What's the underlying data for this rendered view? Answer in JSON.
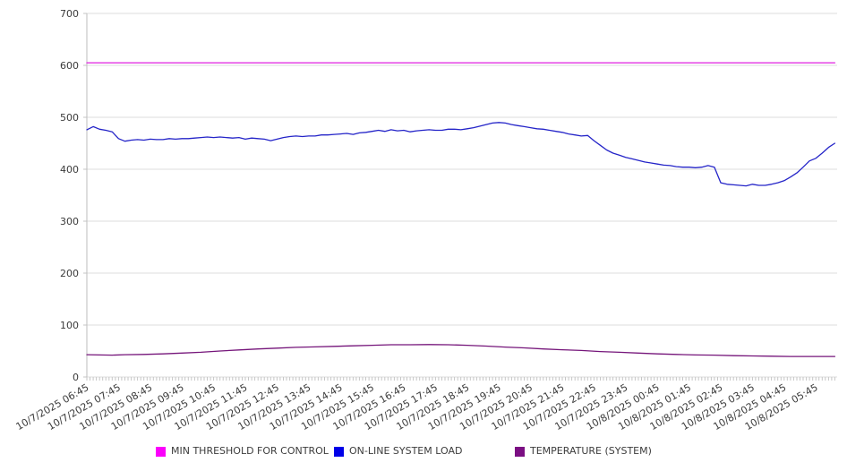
{
  "chart_data": {
    "type": "line",
    "title": "",
    "xlabel": "",
    "ylabel": "",
    "grid": "horizontal",
    "legend_position": "bottom",
    "y_axis": {
      "min": 0,
      "max": 700,
      "step": 100,
      "tick_labels": [
        "0",
        "100",
        "200",
        "300",
        "400",
        "500",
        "600",
        "700"
      ]
    },
    "x_axis": {
      "tick_labels": [
        "10/7/2025 06:45",
        "10/7/2025 07:45",
        "10/7/2025 08:45",
        "10/7/2025 09:45",
        "10/7/2025 10:45",
        "10/7/2025 11:45",
        "10/7/2025 12:45",
        "10/7/2025 13:45",
        "10/7/2025 14:45",
        "10/7/2025 15:45",
        "10/7/2025 16:45",
        "10/7/2025 17:45",
        "10/7/2025 18:45",
        "10/7/2025 19:45",
        "10/7/2025 20:45",
        "10/7/2025 21:45",
        "10/7/2025 22:45",
        "10/7/2025 23:45",
        "10/8/2025 00:45",
        "10/8/2025 01:45",
        "10/8/2025 02:45",
        "10/8/2025 03:45",
        "10/8/2025 04:45",
        "10/8/2025 05:45"
      ],
      "t_first_tick": 6.75,
      "t_tick_step": 1.0,
      "t_min": 6.75,
      "t_max": 30.35,
      "minor_tick_step": 0.1,
      "label_rotation_deg": -30
    },
    "series": [
      {
        "name": "MIN THRESHOLD FOR CONTROL",
        "color": "#df1fdf",
        "legend_color": "#fb00fb",
        "points": [
          [
            6.75,
            605
          ],
          [
            30.35,
            605
          ]
        ]
      },
      {
        "name": "ON-LINE SYSTEM LOAD",
        "color": "#2424c8",
        "legend_color": "#0000e8",
        "points": [
          [
            6.75,
            476
          ],
          [
            6.95,
            482
          ],
          [
            7.15,
            477
          ],
          [
            7.35,
            475
          ],
          [
            7.55,
            472
          ],
          [
            7.75,
            459
          ],
          [
            7.95,
            454
          ],
          [
            8.15,
            456
          ],
          [
            8.35,
            457
          ],
          [
            8.55,
            456
          ],
          [
            8.75,
            458
          ],
          [
            8.95,
            457
          ],
          [
            9.15,
            457
          ],
          [
            9.35,
            459
          ],
          [
            9.55,
            458
          ],
          [
            9.75,
            459
          ],
          [
            9.95,
            459
          ],
          [
            10.15,
            460
          ],
          [
            10.35,
            461
          ],
          [
            10.55,
            462
          ],
          [
            10.75,
            461
          ],
          [
            10.95,
            462
          ],
          [
            11.15,
            461
          ],
          [
            11.35,
            460
          ],
          [
            11.55,
            461
          ],
          [
            11.75,
            458
          ],
          [
            11.95,
            460
          ],
          [
            12.15,
            459
          ],
          [
            12.35,
            458
          ],
          [
            12.55,
            455
          ],
          [
            12.75,
            458
          ],
          [
            12.95,
            461
          ],
          [
            13.15,
            463
          ],
          [
            13.35,
            464
          ],
          [
            13.55,
            463
          ],
          [
            13.75,
            464
          ],
          [
            13.95,
            464
          ],
          [
            14.15,
            466
          ],
          [
            14.35,
            466
          ],
          [
            14.55,
            467
          ],
          [
            14.75,
            468
          ],
          [
            14.95,
            469
          ],
          [
            15.15,
            467
          ],
          [
            15.35,
            470
          ],
          [
            15.55,
            471
          ],
          [
            15.75,
            473
          ],
          [
            15.95,
            475
          ],
          [
            16.15,
            473
          ],
          [
            16.35,
            476
          ],
          [
            16.55,
            474
          ],
          [
            16.75,
            475
          ],
          [
            16.95,
            472
          ],
          [
            17.15,
            474
          ],
          [
            17.35,
            475
          ],
          [
            17.55,
            476
          ],
          [
            17.75,
            475
          ],
          [
            17.95,
            475
          ],
          [
            18.15,
            477
          ],
          [
            18.35,
            477
          ],
          [
            18.55,
            476
          ],
          [
            18.75,
            478
          ],
          [
            18.95,
            480
          ],
          [
            19.15,
            483
          ],
          [
            19.35,
            486
          ],
          [
            19.55,
            489
          ],
          [
            19.75,
            490
          ],
          [
            19.95,
            489
          ],
          [
            20.15,
            486
          ],
          [
            20.35,
            484
          ],
          [
            20.55,
            482
          ],
          [
            20.75,
            480
          ],
          [
            20.95,
            478
          ],
          [
            21.15,
            477
          ],
          [
            21.35,
            475
          ],
          [
            21.55,
            473
          ],
          [
            21.75,
            471
          ],
          [
            21.95,
            468
          ],
          [
            22.15,
            466
          ],
          [
            22.35,
            464
          ],
          [
            22.55,
            465
          ],
          [
            22.75,
            455
          ],
          [
            22.95,
            446
          ],
          [
            23.15,
            437
          ],
          [
            23.35,
            431
          ],
          [
            23.55,
            427
          ],
          [
            23.75,
            423
          ],
          [
            23.95,
            420
          ],
          [
            24.15,
            417
          ],
          [
            24.35,
            414
          ],
          [
            24.55,
            412
          ],
          [
            24.75,
            410
          ],
          [
            24.95,
            408
          ],
          [
            25.15,
            407
          ],
          [
            25.35,
            405
          ],
          [
            25.55,
            404
          ],
          [
            25.75,
            404
          ],
          [
            25.95,
            403
          ],
          [
            26.15,
            404
          ],
          [
            26.35,
            407
          ],
          [
            26.55,
            404
          ],
          [
            26.75,
            374
          ],
          [
            26.95,
            371
          ],
          [
            27.15,
            370
          ],
          [
            27.35,
            369
          ],
          [
            27.55,
            368
          ],
          [
            27.75,
            371
          ],
          [
            27.95,
            369
          ],
          [
            28.15,
            369
          ],
          [
            28.35,
            371
          ],
          [
            28.55,
            374
          ],
          [
            28.75,
            378
          ],
          [
            28.95,
            385
          ],
          [
            29.15,
            393
          ],
          [
            29.35,
            404
          ],
          [
            29.55,
            416
          ],
          [
            29.75,
            421
          ],
          [
            29.95,
            431
          ],
          [
            30.15,
            442
          ],
          [
            30.35,
            450
          ]
        ]
      },
      {
        "name": "TEMPERATURE (SYSTEM)",
        "color": "#75157a",
        "legend_color": "#7b0f83",
        "points": [
          [
            6.75,
            43
          ],
          [
            7.15,
            42.5
          ],
          [
            7.55,
            42
          ],
          [
            7.95,
            43
          ],
          [
            8.55,
            43.5
          ],
          [
            9.15,
            44.5
          ],
          [
            9.75,
            46
          ],
          [
            10.35,
            47.5
          ],
          [
            10.95,
            50
          ],
          [
            11.55,
            52
          ],
          [
            12.15,
            54
          ],
          [
            12.75,
            55.5
          ],
          [
            13.35,
            57
          ],
          [
            13.95,
            58
          ],
          [
            14.55,
            59
          ],
          [
            15.15,
            60
          ],
          [
            15.75,
            61
          ],
          [
            16.35,
            62
          ],
          [
            16.95,
            62
          ],
          [
            17.55,
            62.5
          ],
          [
            18.15,
            62
          ],
          [
            18.75,
            61
          ],
          [
            19.35,
            59.5
          ],
          [
            19.95,
            57.5
          ],
          [
            20.55,
            56
          ],
          [
            21.15,
            54
          ],
          [
            21.75,
            52.5
          ],
          [
            22.35,
            51
          ],
          [
            22.95,
            49
          ],
          [
            23.55,
            47.5
          ],
          [
            24.15,
            46
          ],
          [
            24.75,
            44.5
          ],
          [
            25.35,
            43.5
          ],
          [
            25.95,
            42.5
          ],
          [
            26.55,
            42
          ],
          [
            27.15,
            41
          ],
          [
            27.75,
            40.5
          ],
          [
            28.35,
            40
          ],
          [
            28.95,
            39.5
          ],
          [
            29.55,
            39.5
          ],
          [
            30.35,
            39.5
          ]
        ]
      }
    ],
    "colors": {
      "gridline": "#dedede",
      "axis_line": "#bdbdbd",
      "tick_mark": "#c6c6c6",
      "tick_label": "#3a3a3a",
      "background": "#ffffff"
    }
  }
}
